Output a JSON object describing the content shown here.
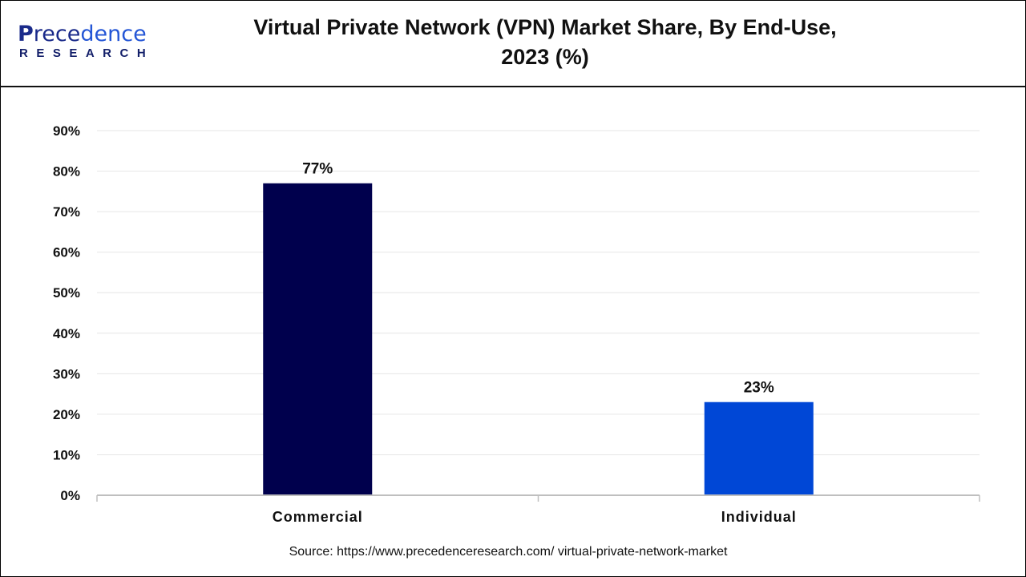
{
  "logo": {
    "line1": "Precedence",
    "line2": "RESEARCH"
  },
  "colors": {
    "commercial": "#00004d",
    "individual": "#0047d6",
    "grid": "#e6e6e6",
    "axis": "#bfbfbf"
  },
  "chart_data": {
    "type": "bar",
    "title": "Virtual Private Network (VPN) Market Share, By End-Use, 2023 (%)",
    "categories": [
      "Commercial",
      "Individual"
    ],
    "values": [
      77,
      23
    ],
    "data_labels": [
      "77%",
      "23%"
    ],
    "yticks": [
      "0%",
      "10%",
      "20%",
      "30%",
      "40%",
      "50%",
      "60%",
      "70%",
      "80%",
      "90%"
    ],
    "ylim": [
      0,
      90
    ],
    "grid": true,
    "xlabel": "",
    "ylabel": ""
  },
  "source": "Source: https://www.precedenceresearch.com/ virtual-private-network-market"
}
